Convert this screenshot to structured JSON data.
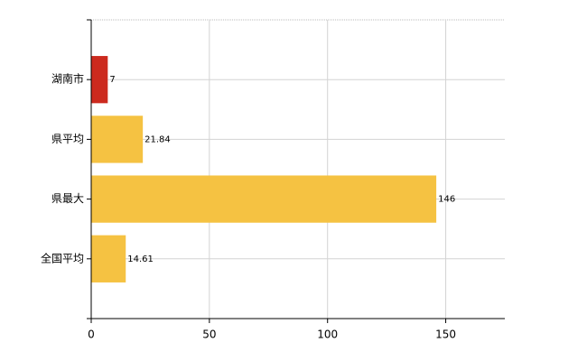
{
  "chart_data": {
    "type": "bar",
    "orientation": "horizontal",
    "categories": [
      "湖南市",
      "県平均",
      "県最大",
      "全国平均"
    ],
    "values": [
      7,
      21.84,
      146,
      14.61
    ],
    "colors": [
      "#cc2a1e",
      "#f5c242",
      "#f5c242",
      "#f5c242"
    ],
    "xlim": [
      0,
      175
    ],
    "xticks": [
      0,
      50,
      100,
      150
    ],
    "grid": true
  }
}
